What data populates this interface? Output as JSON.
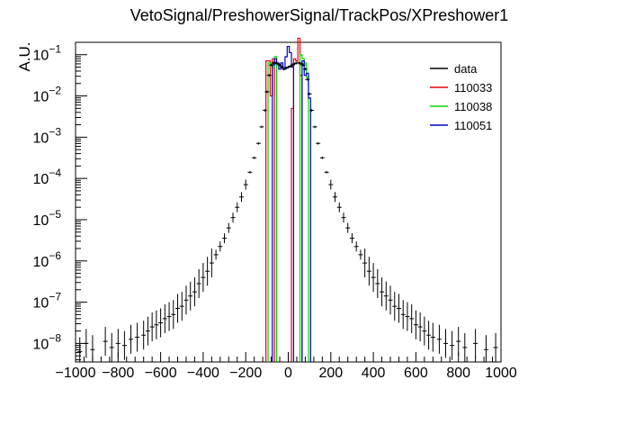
{
  "chart_data": {
    "type": "histogram",
    "title": "VetoSignal/PreshowerSignal/TrackPos/XPreshower1",
    "xlabel": "",
    "ylabel": "A.U.",
    "xlim": [
      -1000,
      1000
    ],
    "ylim_log10": [
      -8.45,
      -0.7
    ],
    "yscale": "log",
    "x_ticks": [
      "−1000",
      "−800",
      "−600",
      "−400",
      "−200",
      "0",
      "200",
      "400",
      "600",
      "800",
      "1000"
    ],
    "x_tick_values": [
      -1000,
      -800,
      -600,
      -400,
      -200,
      0,
      200,
      400,
      600,
      800,
      1000
    ],
    "y_ticks": [
      {
        "base": "10",
        "exp": "−8",
        "log10": -8
      },
      {
        "base": "10",
        "exp": "−7",
        "log10": -7
      },
      {
        "base": "10",
        "exp": "−6",
        "log10": -6
      },
      {
        "base": "10",
        "exp": "−5",
        "log10": -5
      },
      {
        "base": "10",
        "exp": "−4",
        "log10": -4
      },
      {
        "base": "10",
        "exp": "−3",
        "log10": -3
      },
      {
        "base": "10",
        "exp": "−2",
        "log10": -2
      },
      {
        "base": "10",
        "exp": "−1",
        "log10": -1
      }
    ],
    "legend_position": "top-right",
    "series": [
      {
        "name": "data",
        "color": "#000000",
        "style": "points",
        "points": [
          [
            -980,
            -8.2
          ],
          [
            -950,
            -8.0
          ],
          [
            -920,
            -8.15
          ],
          [
            -860,
            -7.95
          ],
          [
            -830,
            -8.1
          ],
          [
            -800,
            -8.0
          ],
          [
            -770,
            -8.05
          ],
          [
            -740,
            -7.9
          ],
          [
            -710,
            -7.85
          ],
          [
            -680,
            -7.8
          ],
          [
            -660,
            -7.7
          ],
          [
            -640,
            -7.6
          ],
          [
            -620,
            -7.55
          ],
          [
            -600,
            -7.5
          ],
          [
            -580,
            -7.4
          ],
          [
            -560,
            -7.35
          ],
          [
            -540,
            -7.3
          ],
          [
            -520,
            -7.15
          ],
          [
            -500,
            -7.1
          ],
          [
            -480,
            -6.95
          ],
          [
            -460,
            -6.85
          ],
          [
            -440,
            -6.75
          ],
          [
            -420,
            -6.55
          ],
          [
            -400,
            -6.4
          ],
          [
            -380,
            -6.25
          ],
          [
            -360,
            -6.05
          ],
          [
            -340,
            -5.85
          ],
          [
            -320,
            -5.65
          ],
          [
            -300,
            -5.45
          ],
          [
            -280,
            -5.2
          ],
          [
            -260,
            -4.95
          ],
          [
            -240,
            -4.7
          ],
          [
            -220,
            -4.45
          ],
          [
            -200,
            -4.15
          ],
          [
            -180,
            -3.85
          ],
          [
            -160,
            -3.5
          ],
          [
            -140,
            -3.15
          ],
          [
            -125,
            -2.75
          ],
          [
            -110,
            -2.35
          ],
          [
            -100,
            -1.9
          ],
          [
            -90,
            -1.5
          ],
          [
            -80,
            -1.25
          ],
          [
            -70,
            -1.2
          ],
          [
            -60,
            -1.2
          ],
          [
            -50,
            -1.22
          ],
          [
            -40,
            -1.25
          ],
          [
            -30,
            -1.3
          ],
          [
            -20,
            -1.35
          ],
          [
            -10,
            -1.33
          ],
          [
            0,
            -1.3
          ],
          [
            10,
            -1.28
          ],
          [
            20,
            -1.25
          ],
          [
            30,
            -1.22
          ],
          [
            40,
            -1.2
          ],
          [
            50,
            -1.2
          ],
          [
            60,
            -1.22
          ],
          [
            70,
            -1.25
          ],
          [
            80,
            -1.35
          ],
          [
            90,
            -1.6
          ],
          [
            100,
            -1.95
          ],
          [
            110,
            -2.35
          ],
          [
            125,
            -2.75
          ],
          [
            140,
            -3.15
          ],
          [
            160,
            -3.5
          ],
          [
            180,
            -3.85
          ],
          [
            200,
            -4.15
          ],
          [
            220,
            -4.45
          ],
          [
            240,
            -4.7
          ],
          [
            260,
            -4.95
          ],
          [
            280,
            -5.2
          ],
          [
            300,
            -5.45
          ],
          [
            320,
            -5.65
          ],
          [
            340,
            -5.85
          ],
          [
            360,
            -6.05
          ],
          [
            380,
            -6.25
          ],
          [
            400,
            -6.4
          ],
          [
            420,
            -6.55
          ],
          [
            440,
            -6.75
          ],
          [
            460,
            -6.85
          ],
          [
            480,
            -6.95
          ],
          [
            500,
            -7.1
          ],
          [
            520,
            -7.15
          ],
          [
            540,
            -7.3
          ],
          [
            560,
            -7.35
          ],
          [
            580,
            -7.4
          ],
          [
            600,
            -7.55
          ],
          [
            620,
            -7.6
          ],
          [
            640,
            -7.7
          ],
          [
            660,
            -7.8
          ],
          [
            680,
            -7.85
          ],
          [
            710,
            -7.9
          ],
          [
            740,
            -8.0
          ],
          [
            770,
            -8.05
          ],
          [
            800,
            -7.95
          ],
          [
            830,
            -8.1
          ],
          [
            880,
            -8.0
          ],
          [
            930,
            -8.15
          ],
          [
            975,
            -8.1
          ]
        ]
      },
      {
        "name": "110033",
        "color": "#e8000b",
        "style": "hist",
        "bins": [
          [
            -105,
            -95,
            -1.15
          ],
          [
            -95,
            -85,
            -1.15
          ],
          [
            -85,
            -75,
            -2.0
          ],
          [
            -75,
            -65,
            -1.1
          ],
          [
            15,
            25,
            -2.3
          ],
          [
            25,
            35,
            -1.1
          ],
          [
            35,
            45,
            -1.15
          ],
          [
            45,
            55,
            -0.6
          ],
          [
            55,
            65,
            -1.5
          ]
        ]
      },
      {
        "name": "110038",
        "color": "#00dc00",
        "style": "hist",
        "bins": [
          [
            -95,
            -85,
            -1.2
          ],
          [
            -85,
            -75,
            -1.25
          ],
          [
            -75,
            -65,
            -1.3
          ],
          [
            -65,
            -55,
            -1.05
          ],
          [
            55,
            65,
            -1.0
          ],
          [
            65,
            75,
            -1.1
          ],
          [
            75,
            85,
            -1.2
          ],
          [
            85,
            95,
            -1.55
          ]
        ]
      },
      {
        "name": "110051",
        "color": "#0000c8",
        "style": "hist",
        "bins": [
          [
            -75,
            -65,
            -1.25
          ],
          [
            -65,
            -55,
            -1.1
          ],
          [
            -55,
            -45,
            -1.2
          ],
          [
            -45,
            -35,
            -1.35
          ],
          [
            -35,
            -25,
            -1.2
          ],
          [
            -25,
            -15,
            -1.35
          ],
          [
            -15,
            -5,
            -1.05
          ],
          [
            -5,
            5,
            -0.8
          ],
          [
            5,
            15,
            -0.95
          ],
          [
            15,
            25,
            -1.3
          ],
          [
            65,
            75,
            -1.15
          ],
          [
            75,
            85,
            -1.5
          ],
          [
            85,
            95,
            -1.45
          ],
          [
            95,
            105,
            -2.05
          ]
        ]
      }
    ]
  }
}
